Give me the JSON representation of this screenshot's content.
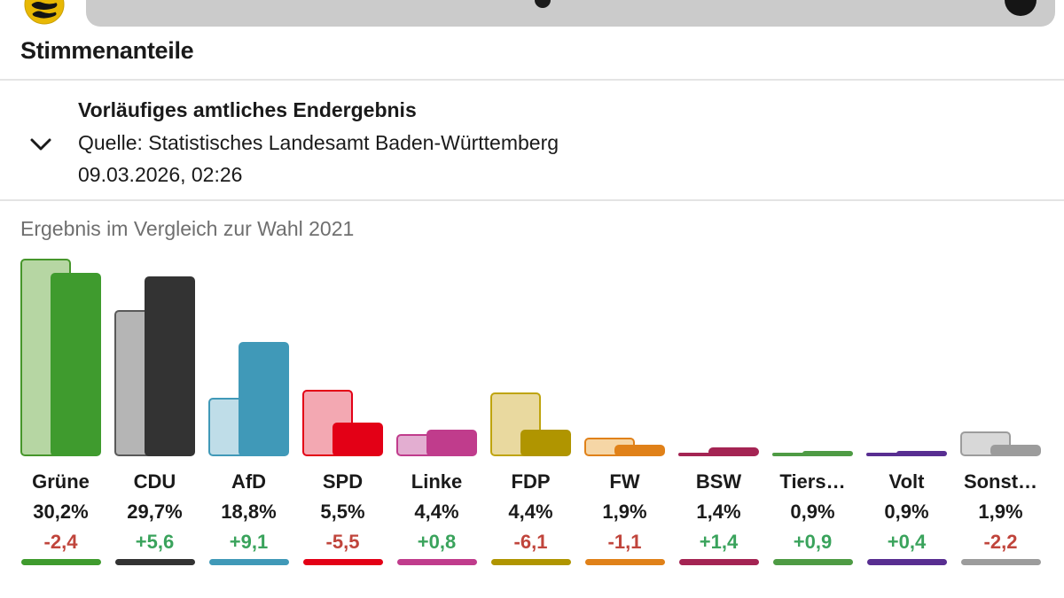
{
  "header": {
    "logo_icon": "baden-wuerttemberg-coat-of-arms",
    "logo_gold": "#e8b804",
    "logo_black": "#141414",
    "bar_color": "#cbcbcb",
    "circle_button_color": "#151515"
  },
  "page": {
    "title": "Stimmenanteile"
  },
  "source_panel": {
    "chevron_icon": "chevron-down",
    "status": "Vorläufiges amtliches Endergebnis",
    "source": "Quelle: Statistisches Landesamt Baden-Württemberg",
    "timestamp": "09.03.2026, 02:26"
  },
  "chart_data": {
    "type": "bar",
    "title": "Ergebnis im Vergleich zur Wahl 2021",
    "comparison_year": "2021",
    "unit": "%",
    "ylim": [
      0,
      33
    ],
    "grid": false,
    "legend": "none",
    "positive_color": "#3aa35c",
    "negative_color": "#c0453c",
    "series_note": "each party: light bar = Wahl 2021 (prev), solid bar = current result (value)",
    "parties": [
      {
        "name": "Grüne",
        "value": 30.2,
        "value_label": "30,2%",
        "prev": 32.6,
        "change_label": "-2,4",
        "color": "#3f9b2e",
        "color_light": "#b6d6a3",
        "color_border": "#46962b"
      },
      {
        "name": "CDU",
        "value": 29.7,
        "value_label": "29,7%",
        "prev": 24.1,
        "change_label": "+5,6",
        "color": "#333333",
        "color_light": "#b5b5b5",
        "color_border": "#595959"
      },
      {
        "name": "AfD",
        "value": 18.8,
        "value_label": "18,8%",
        "prev": 9.7,
        "change_label": "+9,1",
        "color": "#4099b8",
        "color_light": "#bfdde8",
        "color_border": "#4099b8"
      },
      {
        "name": "SPD",
        "value": 5.5,
        "value_label": "5,5%",
        "prev": 11.0,
        "change_label": "-5,5",
        "color": "#e30016",
        "color_light": "#f3a8b2",
        "color_border": "#e30016"
      },
      {
        "name": "Linke",
        "value": 4.4,
        "value_label": "4,4%",
        "prev": 3.6,
        "change_label": "+0,8",
        "color": "#c03c8c",
        "color_light": "#e3aed1",
        "color_border": "#c03c8c"
      },
      {
        "name": "FDP",
        "value": 4.4,
        "value_label": "4,4%",
        "prev": 10.5,
        "change_label": "-6,1",
        "color": "#b09500",
        "color_light": "#e9d99f",
        "color_border": "#bfa40e"
      },
      {
        "name": "FW",
        "value": 1.9,
        "value_label": "1,9%",
        "prev": 3.0,
        "change_label": "-1,1",
        "color": "#e08119",
        "color_light": "#f6d6a6",
        "color_border": "#e08119"
      },
      {
        "name": "BSW",
        "value": 1.4,
        "value_label": "1,4%",
        "prev": 0.0,
        "change_label": "+1,4",
        "color": "#a42453",
        "color_light": "#a42453",
        "color_border": "#a42453"
      },
      {
        "name": "Tiers…",
        "value": 0.9,
        "value_label": "0,9%",
        "prev": 0.0,
        "change_label": "+0,9",
        "color": "#4e9b44",
        "color_light": "#4e9b44",
        "color_border": "#4e9b44"
      },
      {
        "name": "Volt",
        "value": 0.9,
        "value_label": "0,9%",
        "prev": 0.5,
        "change_label": "+0,4",
        "color": "#582e91",
        "color_light": "#582e91",
        "color_border": "#582e91"
      },
      {
        "name": "Sonst…",
        "value": 1.9,
        "value_label": "1,9%",
        "prev": 4.1,
        "change_label": "-2,2",
        "color": "#9c9c9c",
        "color_light": "#d8d8d8",
        "color_border": "#9c9c9c"
      }
    ]
  }
}
